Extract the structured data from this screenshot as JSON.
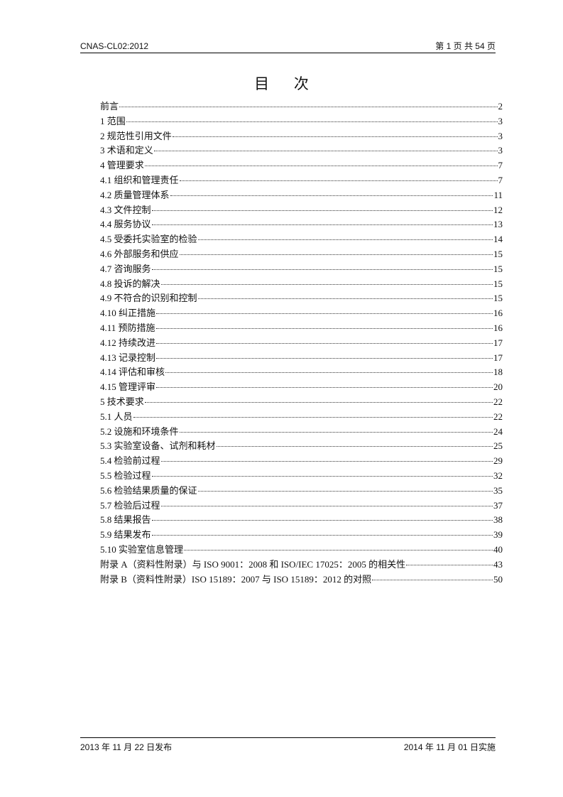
{
  "header": {
    "doc_id": "CNAS-CL02:2012",
    "page_info": "第 1 页 共 54 页"
  },
  "title": "目 次",
  "toc": [
    {
      "label": "前言",
      "page": "2"
    },
    {
      "label": "1  范围",
      "page": "3"
    },
    {
      "label": "2  规范性引用文件",
      "page": "3"
    },
    {
      "label": "3  术语和定义",
      "page": "3"
    },
    {
      "label": "4  管理要求",
      "page": "7"
    },
    {
      "label": "4.1  组织和管理责任",
      "page": "7"
    },
    {
      "label": "4.2  质量管理体系",
      "page": "11"
    },
    {
      "label": "4.3  文件控制",
      "page": "12"
    },
    {
      "label": "4.4  服务协议",
      "page": "13"
    },
    {
      "label": "4.5  受委托实验室的检验",
      "page": "14"
    },
    {
      "label": "4.6  外部服务和供应",
      "page": "15"
    },
    {
      "label": "4.7  咨询服务",
      "page": "15"
    },
    {
      "label": "4.8  投诉的解决",
      "page": "15"
    },
    {
      "label": "4.9  不符合的识别和控制",
      "page": "15"
    },
    {
      "label": "4.10  纠正措施",
      "page": "16"
    },
    {
      "label": "4.11   预防措施",
      "page": "16"
    },
    {
      "label": "4.12  持续改进",
      "page": "17"
    },
    {
      "label": "4.13  记录控制",
      "page": "17"
    },
    {
      "label": "4.14  评估和审核",
      "page": "18"
    },
    {
      "label": "4.15  管理评审",
      "page": "20"
    },
    {
      "label": "5  技术要求",
      "page": "22"
    },
    {
      "label": "5.1  人员",
      "page": "22"
    },
    {
      "label": "5.2  设施和环境条件",
      "page": "24"
    },
    {
      "label": "5.3  实验室设备、试剂和耗材",
      "page": "25"
    },
    {
      "label": "5.4  检验前过程",
      "page": "29"
    },
    {
      "label": "5.5  检验过程",
      "page": "32"
    },
    {
      "label": "5.6  检验结果质量的保证",
      "page": "35"
    },
    {
      "label": "5.7  检验后过程",
      "page": "37"
    },
    {
      "label": "5.8  结果报告",
      "page": "38"
    },
    {
      "label": "5.9  结果发布",
      "page": "39"
    },
    {
      "label": "5.10  实验室信息管理",
      "page": "40"
    },
    {
      "label": "附录 A（资料性附录）与 ISO 9001：2008 和 ISO/IEC 17025：2005 的相关性",
      "page": "43"
    },
    {
      "label": "附录 B（资料性附录）ISO 15189：2007 与 ISO 15189：2012 的对照",
      "page": "50"
    }
  ],
  "footer": {
    "issued": "2013 年 11 月 22 日发布",
    "effective": "2014 年 11 月 01 日实施"
  }
}
